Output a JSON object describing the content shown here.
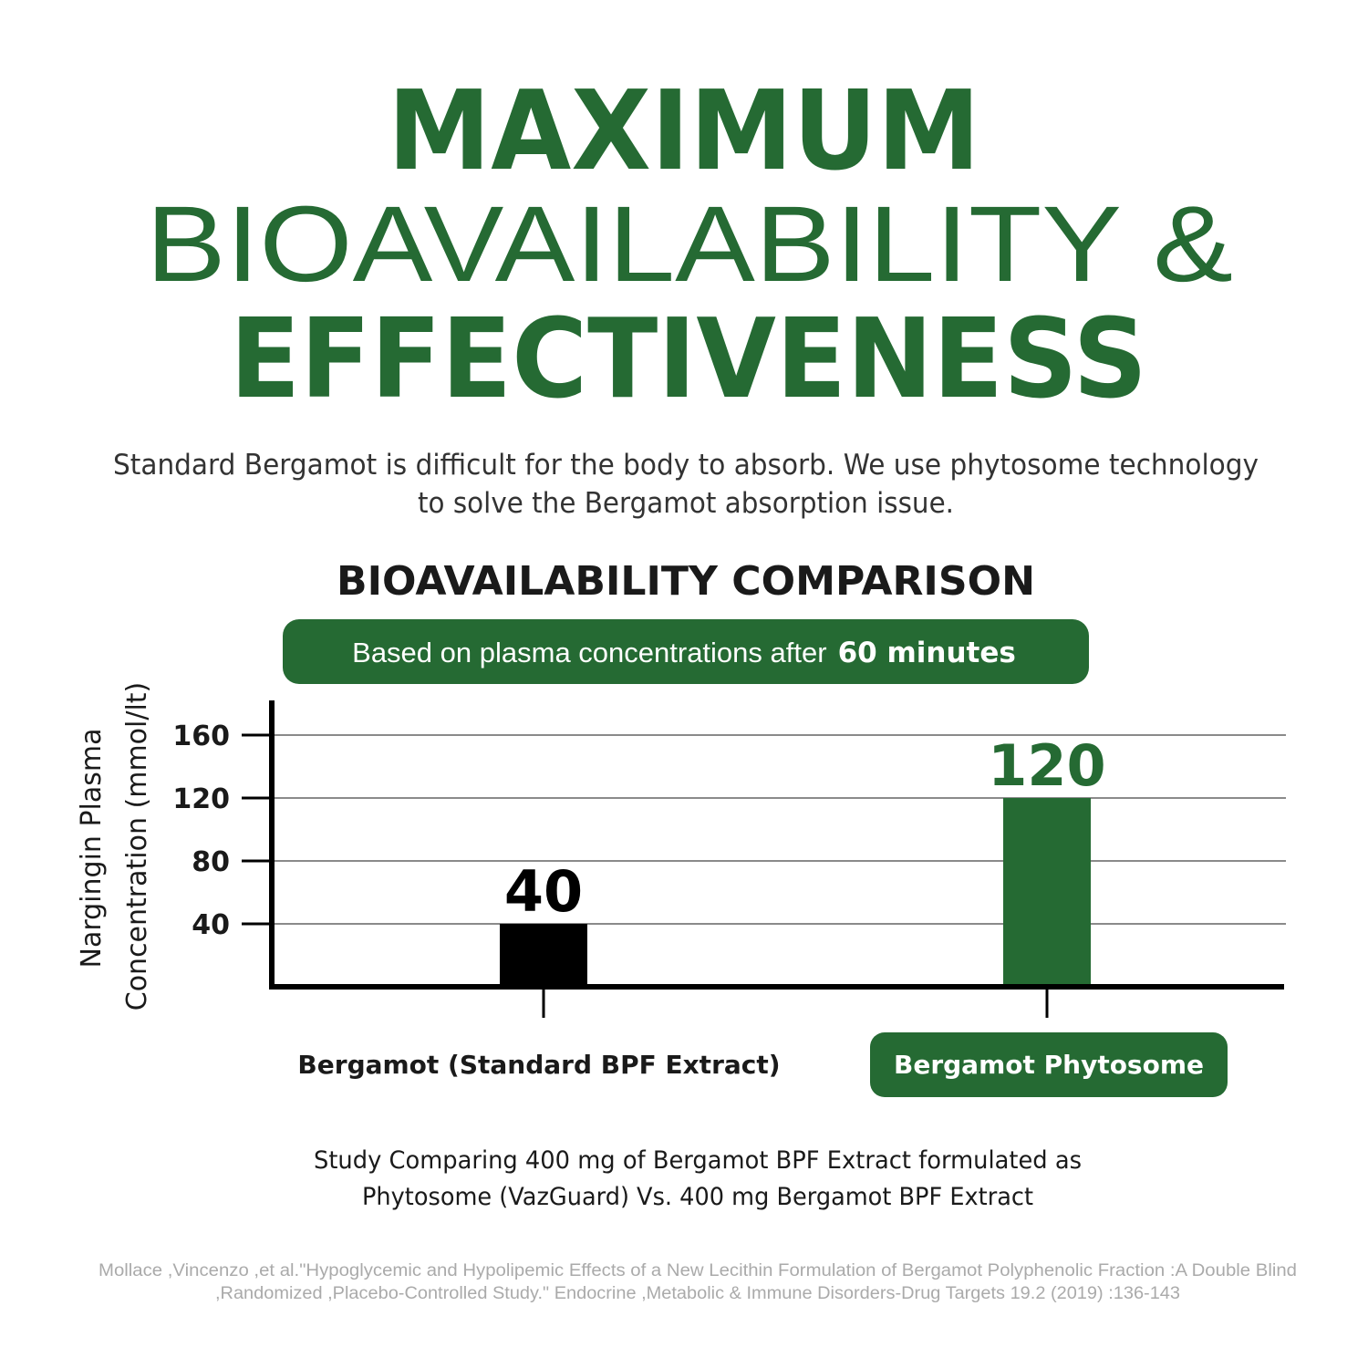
{
  "headline": [
    "MAXIMUM",
    "BIOAVAILABILITY &",
    "EFFECTIVENESS"
  ],
  "intro": [
    "Standard Bergamot is difficult for the body to absorb. We use phytosome technology",
    "to solve the Bergamot absorption issue."
  ],
  "chart_data": {
    "type": "bar",
    "title": "BIOAVAILABILITY COMPARISON",
    "subtitle_lead": "Based on plasma concentrations after",
    "subtitle_emphasis": "60 minutes",
    "ylabel": [
      "Nargingin Plasma",
      "Concentration (mmol/lt)"
    ],
    "categories": [
      "Bergamot (Standard BPF Extract)",
      "Bergamot Phytosome"
    ],
    "values": [
      40,
      120
    ],
    "colors": [
      "#000000",
      "#256a33"
    ],
    "ylim": [
      0,
      180
    ],
    "yticks": [
      40,
      80,
      120,
      160
    ],
    "grid": true
  },
  "study_note": [
    "Study Comparing 400 mg of Bergamot BPF Extract formulated as",
    "Phytosome (VazGuard) Vs. 400 mg Bergamot BPF Extract"
  ],
  "citation": [
    "Mollace ,Vincenzo ,et al.\"Hypoglycemic and Hypolipemic Effects of a New Lecithin Formulation of Bergamot Polyphenolic  Fraction  :A Double Blind",
    ",Randomized ,Placebo-Controlled Study.\"  Endocrine ,Metabolic & Immune Disorders-Drug Targets 19.2 (2019) :136-143"
  ]
}
